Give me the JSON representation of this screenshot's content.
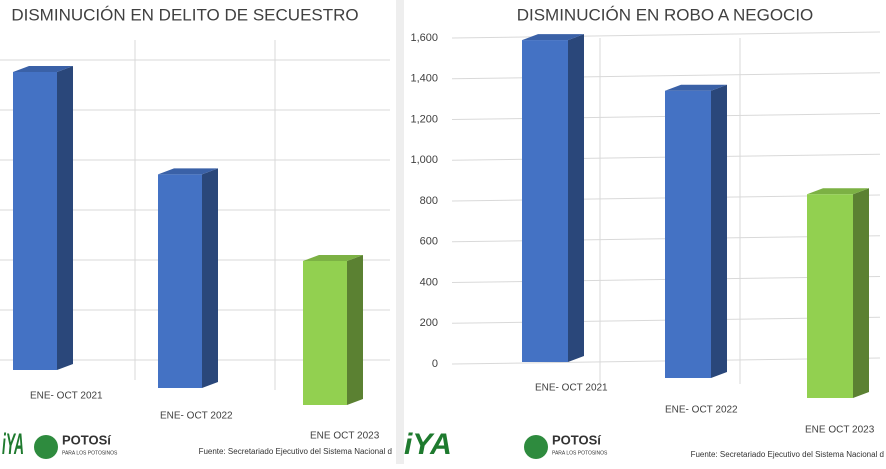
{
  "chart_data": [
    {
      "type": "bar3d",
      "title": "DISMINUCIÓN EN DELITO DE SECUESTRO",
      "categories": [
        "ENE- OCT 2021",
        "ENE- OCT 2022",
        "ENE OCT 2023"
      ],
      "values": [
        300,
        215,
        145
      ],
      "colors": [
        "#4472c4",
        "#4472c4",
        "#92d050"
      ]
    },
    {
      "type": "bar3d",
      "title": "DISMINUCIÓN EN ROBO A NEGOCIO",
      "categories": [
        "ENE- OCT 2021",
        "ENE- OCT 2022",
        "ENE OCT 2023"
      ],
      "values": [
        1580,
        1410,
        1000
      ],
      "colors": [
        "#4472c4",
        "#4472c4",
        "#92d050"
      ],
      "ylim": [
        0,
        1600
      ],
      "yticks": [
        0,
        200,
        400,
        600,
        800,
        {
          "value": 1000,
          "label": "1,000"
        },
        {
          "value": 1200,
          "label": "1,200"
        },
        {
          "value": 1400,
          "label": "1,400"
        },
        {
          "value": 1600,
          "label": "1,600"
        }
      ],
      "grid": true
    }
  ],
  "footer": {
    "logo_word": "iYA",
    "brand": "POTOSí",
    "brand_sub": "PARA LOS POTOSINOS",
    "source": "Fuente: Secretariado Ejecutivo del Sistema Nacional d"
  }
}
